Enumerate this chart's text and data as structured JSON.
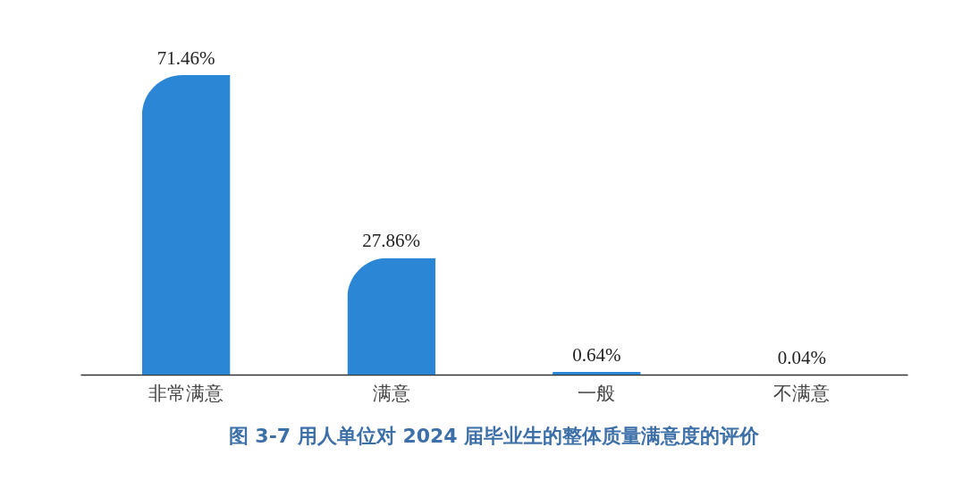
{
  "chart_data": {
    "type": "bar",
    "title": "图 3-7 用人单位对 2024 届毕业生的整体质量满意度的评价",
    "categories": [
      "非常满意",
      "满意",
      "一般",
      "不满意"
    ],
    "values": [
      71.46,
      27.86,
      0.64,
      0.04
    ],
    "color": "#2b86d6",
    "value_labels": [
      "71.46%",
      "27.86%",
      "0.64%",
      "0.04%"
    ],
    "grid": false
  }
}
